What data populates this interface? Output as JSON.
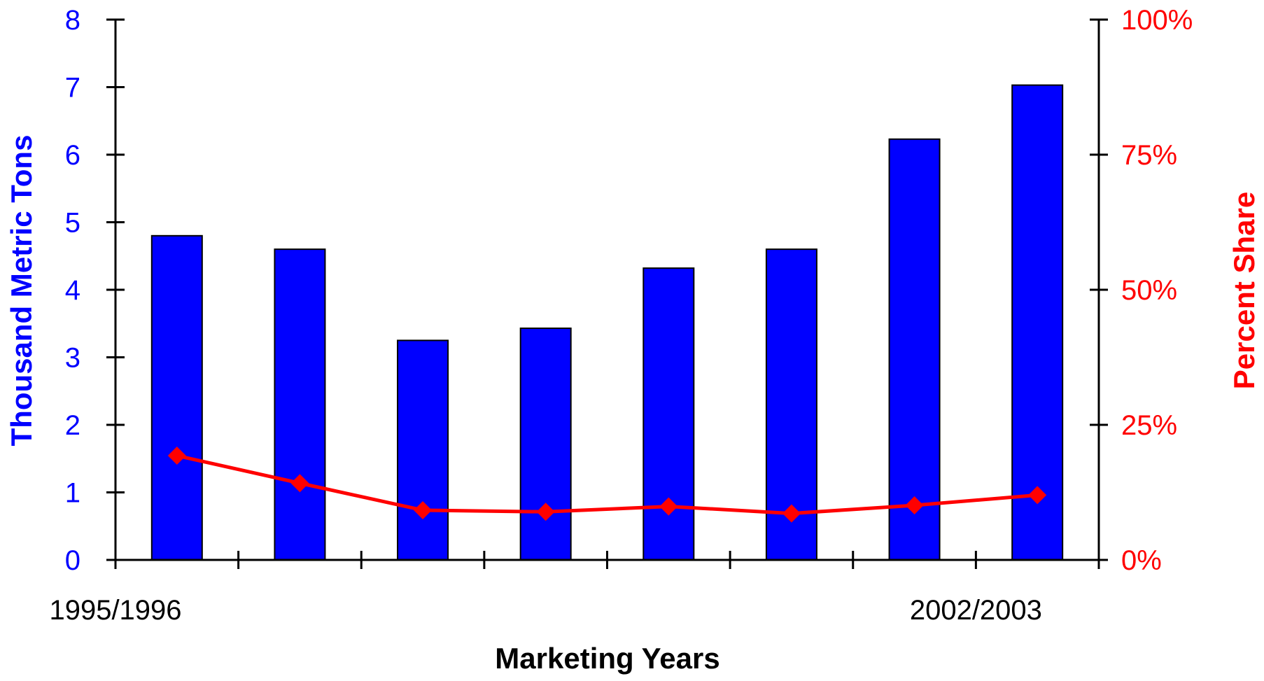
{
  "chart_data": {
    "type": "bar",
    "title": "",
    "xlabel": "Marketing Years",
    "ylabel": "Thousand Metric Tons",
    "y2label": "Percent Share",
    "categories": [
      "1995/1996",
      "",
      "",
      "",
      "",
      "",
      "",
      "2002/2003"
    ],
    "ylim": [
      0,
      8
    ],
    "yticks": [
      "0",
      "1",
      "2",
      "3",
      "4",
      "5",
      "6",
      "7",
      "8"
    ],
    "y2lim": [
      0,
      100
    ],
    "y2ticks": [
      "0%",
      "25%",
      "50%",
      "75%",
      "100%"
    ],
    "series": [
      {
        "kind": "bar",
        "axis": "left",
        "color": "#0000ff",
        "values": [
          4.8,
          4.6,
          3.25,
          3.43,
          4.32,
          4.6,
          6.23,
          7.03
        ]
      },
      {
        "kind": "line",
        "axis": "right",
        "marker": "diamond",
        "color": "#ff0000",
        "values": [
          19.3,
          14.2,
          9.2,
          8.9,
          9.9,
          8.6,
          10.1,
          12.0
        ]
      }
    ],
    "grid": false,
    "legend": "none"
  }
}
